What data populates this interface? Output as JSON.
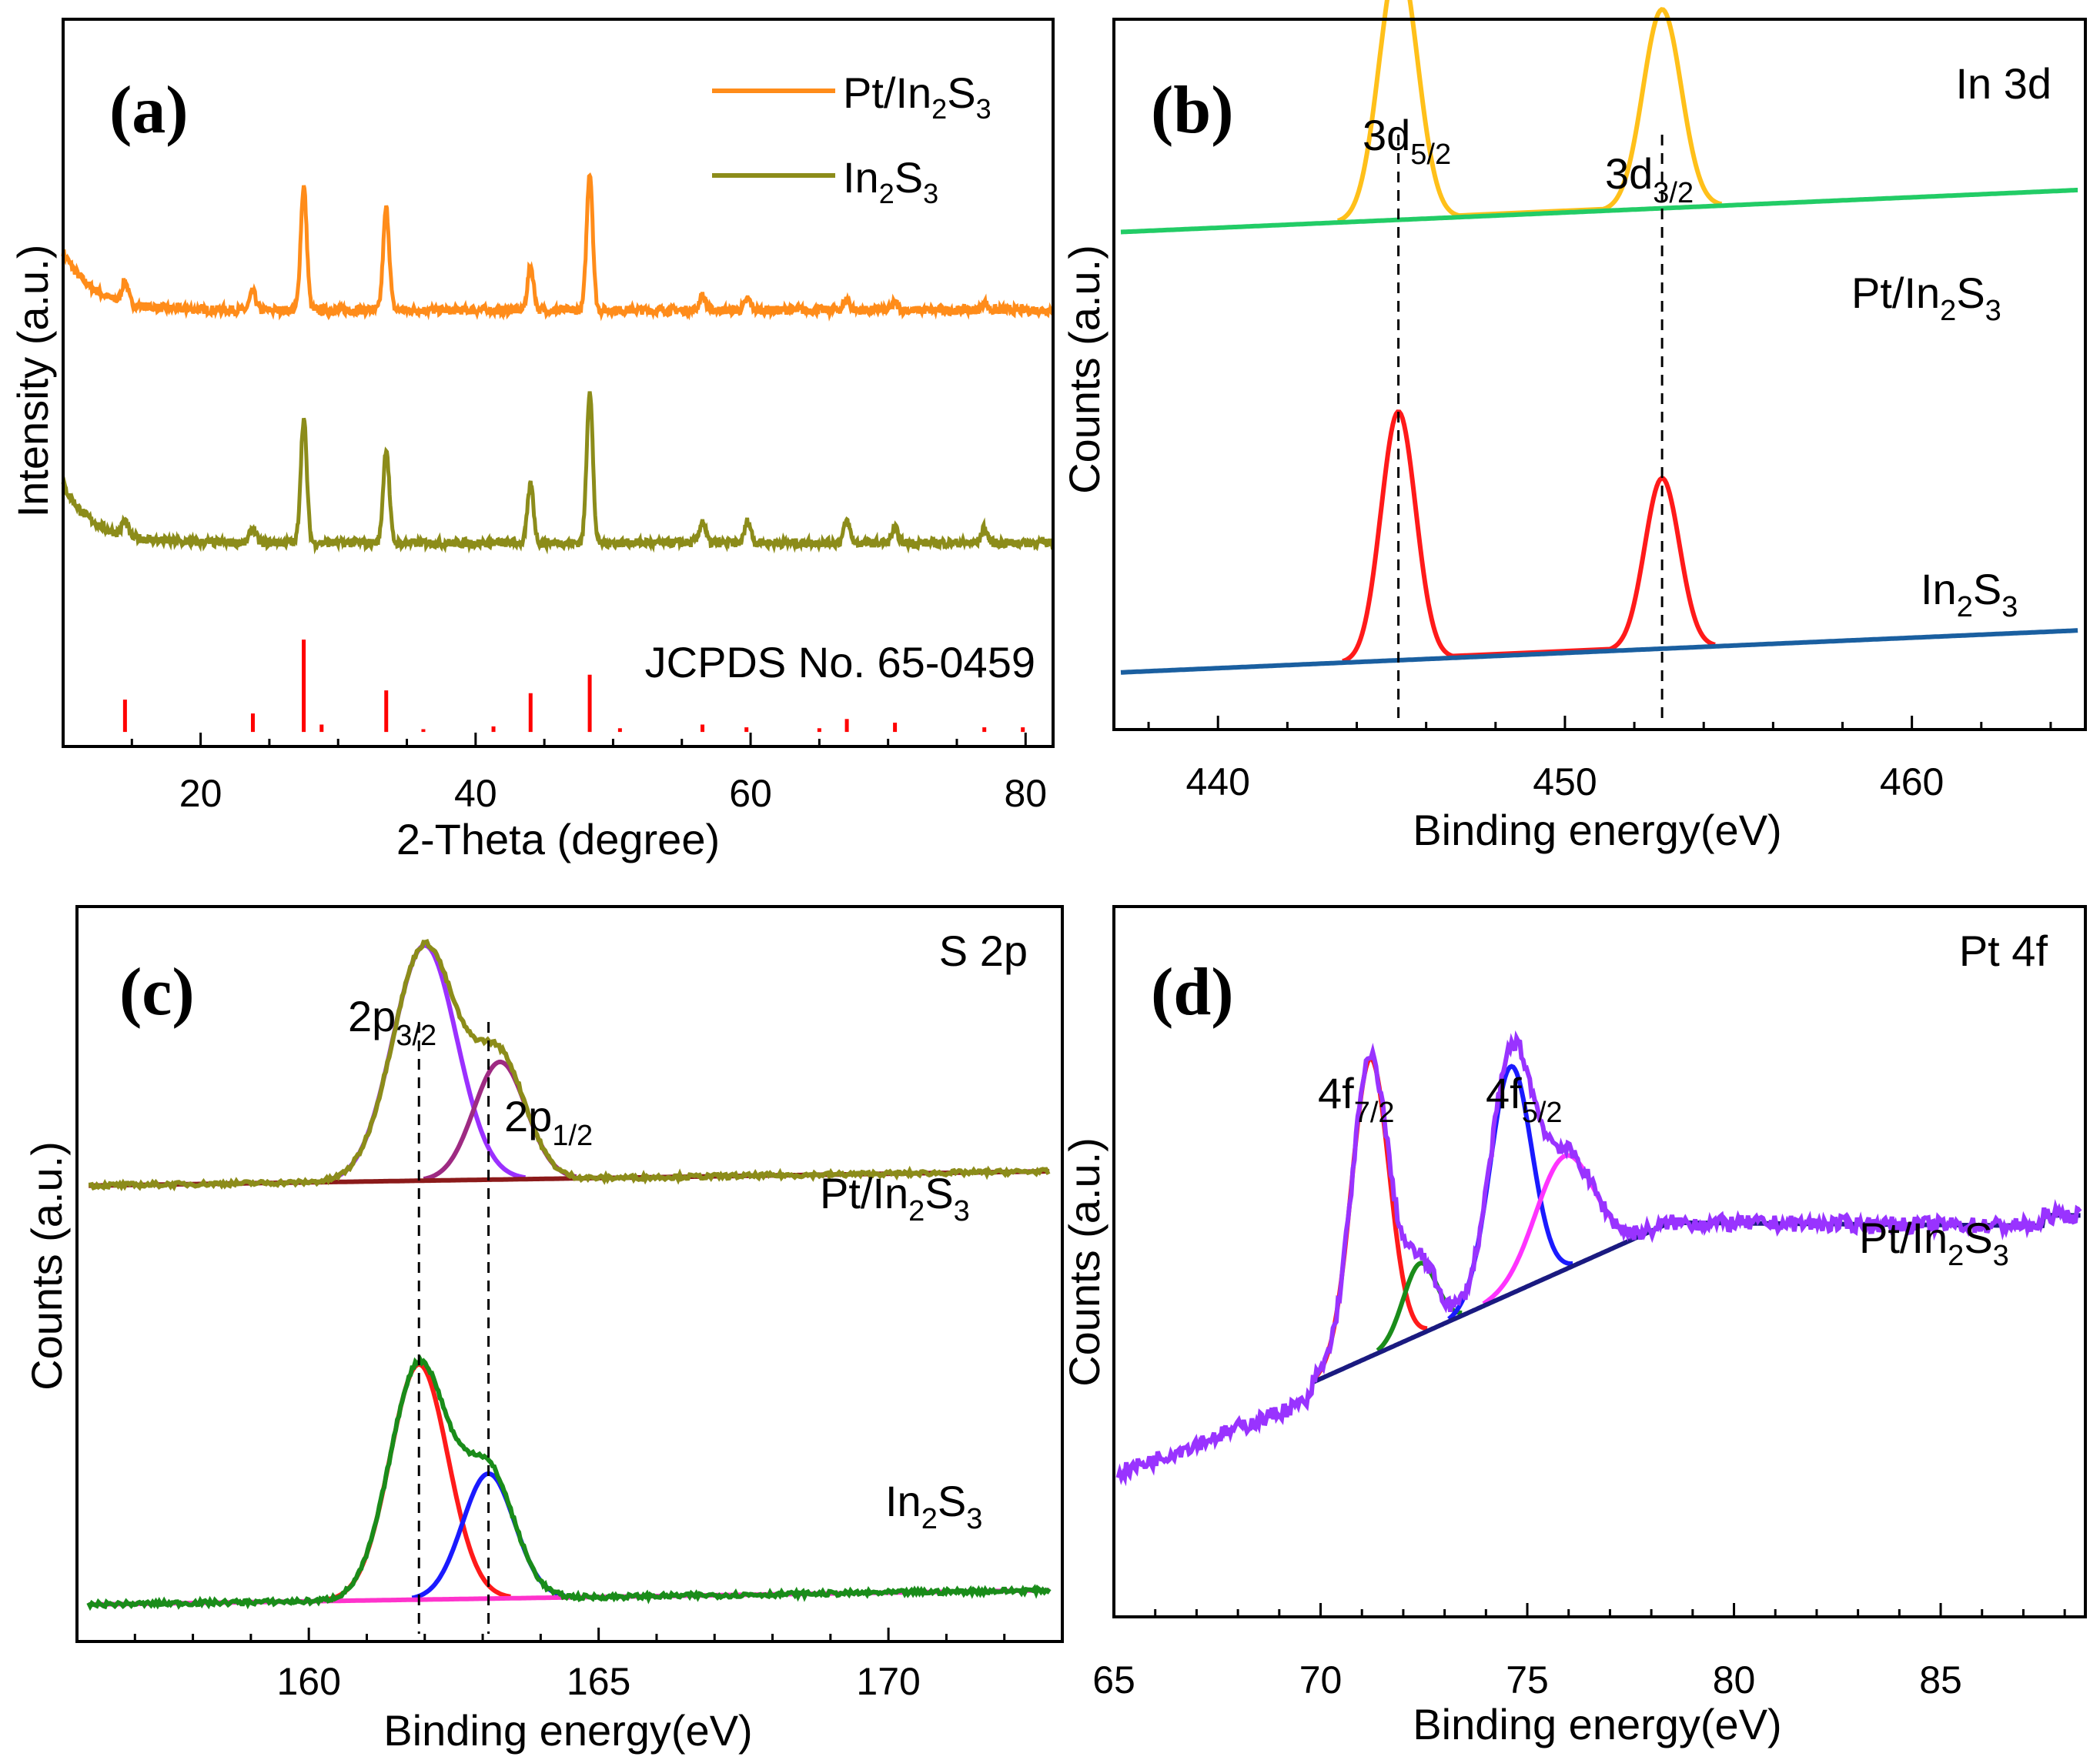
{
  "chart_data": [
    {
      "type": "line",
      "panel": "(a)",
      "xlabel": "2-Theta (degree)",
      "ylabel": "Intensity (a.u.)",
      "xlim": [
        10,
        82
      ],
      "ylim": [
        0,
        100
      ],
      "xticks": [
        20,
        40,
        60,
        80
      ],
      "legend_position": "top-right",
      "legend": [
        {
          "name": "Pt/In2S3",
          "color": "#ff8c1a"
        },
        {
          "name": "In2S3",
          "color": "#8c8c1a"
        }
      ],
      "legend_labels": [
        "Pt/In",
        "2",
        "S",
        "3",
        "In",
        "2",
        "S",
        "3"
      ],
      "reference_label": "JCPDS No. 65-0459",
      "reference_color": "#ff0000",
      "series": [
        {
          "name": "Pt/In2S3",
          "color": "#ff8c1a",
          "baseline": 60,
          "start_rise": 10,
          "peaks": [
            [
              14.5,
              3
            ],
            [
              23.8,
              2.5
            ],
            [
              27.5,
              17
            ],
            [
              33.5,
              14
            ],
            [
              44,
              6
            ],
            [
              48.3,
              19
            ],
            [
              56.5,
              2
            ],
            [
              59.8,
              1.5
            ],
            [
              67,
              1.5
            ],
            [
              70.5,
              1
            ],
            [
              77,
              1
            ]
          ]
        },
        {
          "name": "In2S3",
          "color": "#8c8c1a",
          "baseline": 28,
          "start_rise": 10,
          "peaks": [
            [
              14.5,
              2
            ],
            [
              23.8,
              2
            ],
            [
              27.5,
              17
            ],
            [
              33.5,
              13
            ],
            [
              44,
              8
            ],
            [
              48.3,
              21
            ],
            [
              56.5,
              3
            ],
            [
              59.8,
              3
            ],
            [
              67,
              3
            ],
            [
              70.5,
              2
            ],
            [
              77,
              2
            ]
          ]
        }
      ],
      "reference_sticks": [
        [
          14.5,
          35
        ],
        [
          23.8,
          20
        ],
        [
          27.5,
          100
        ],
        [
          28.8,
          8
        ],
        [
          33.5,
          45
        ],
        [
          36.2,
          3
        ],
        [
          41.3,
          6
        ],
        [
          44,
          42
        ],
        [
          48.3,
          62
        ],
        [
          50.5,
          4
        ],
        [
          56.5,
          8
        ],
        [
          59.7,
          5
        ],
        [
          65,
          4
        ],
        [
          67,
          14
        ],
        [
          70.5,
          10
        ],
        [
          77,
          5
        ],
        [
          79.8,
          5
        ]
      ]
    },
    {
      "type": "line",
      "panel": "(b)",
      "title": "In 3d",
      "xlabel": "Binding energy(eV)",
      "ylabel": "Counts (a.u.)",
      "xlim": [
        437,
        465
      ],
      "ylim": [
        0,
        100
      ],
      "xticks": [
        440,
        450,
        460
      ],
      "peak_labels": [
        {
          "main": "3d",
          "sub": "5/2",
          "x": 445.2
        },
        {
          "main": "3d",
          "sub": "3/2",
          "x": 452.8
        }
      ],
      "series_labels": [
        {
          "main": "Pt/In",
          "sub1": "2",
          "mid": "S",
          "sub2": "3"
        },
        {
          "main": "In",
          "sub1": "2",
          "mid": "S",
          "sub2": "3"
        }
      ],
      "series": [
        {
          "name": "Pt/In2S3 fit",
          "color": "#ffc01a",
          "peaks": [
            [
              445.2,
              37,
              0.55
            ],
            [
              452.8,
              28,
              0.55
            ]
          ],
          "baseline": [
            70,
            76
          ]
        },
        {
          "name": "Pt/In2S3 background",
          "color": "#22cc66",
          "baseline": [
            70,
            76
          ]
        },
        {
          "name": "In2S3 fit",
          "color": "#ff1a1a",
          "peaks": [
            [
              445.2,
              35,
              0.5
            ],
            [
              452.8,
              24,
              0.5
            ]
          ],
          "baseline": [
            8,
            14
          ]
        },
        {
          "name": "In2S3 background",
          "color": "#1a5fa0",
          "baseline": [
            8,
            14
          ]
        }
      ],
      "dashed_lines": [
        445.2,
        452.8
      ]
    },
    {
      "type": "line",
      "panel": "(c)",
      "title": "S 2p",
      "xlabel": "Binding energy(eV)",
      "ylabel": "Counts (a.u.)",
      "xlim": [
        156,
        173
      ],
      "ylim": [
        0,
        100
      ],
      "xticks": [
        160,
        165,
        170
      ],
      "peak_labels": [
        {
          "main": "2p",
          "sub": "3/2",
          "x": 161.9
        },
        {
          "main": "2p",
          "sub": "1/2",
          "x": 163.1
        }
      ],
      "series_labels": [
        {
          "main": "Pt/In",
          "sub1": "2",
          "mid": "S",
          "sub2": "3"
        },
        {
          "main": "In",
          "sub1": "2",
          "mid": "S",
          "sub2": "3"
        }
      ],
      "series": [
        {
          "name": "Pt/In2S3 component 1",
          "color": "#9b30ff",
          "peaks": [
            [
              162.0,
              32,
              0.55
            ]
          ],
          "baseline": [
            62,
            64
          ]
        },
        {
          "name": "Pt/In2S3 component 2",
          "color": "#9e2a82",
          "peaks": [
            [
              163.3,
              16,
              0.45
            ]
          ],
          "baseline": [
            62,
            64
          ]
        },
        {
          "name": "Pt/In2S3 background",
          "color": "#8b1a1a",
          "baseline": [
            62,
            64
          ]
        },
        {
          "name": "Pt/In2S3 envelope",
          "color": "#8c8c1a",
          "peaks": [
            [
              162.0,
              32,
              0.55
            ],
            [
              163.3,
              16,
              0.45
            ]
          ],
          "baseline": [
            62,
            64
          ]
        },
        {
          "name": "In2S3 component 1",
          "color": "#ff1a1a",
          "peaks": [
            [
              161.9,
              32,
              0.5
            ]
          ],
          "baseline": [
            5,
            7
          ]
        },
        {
          "name": "In2S3 component 2",
          "color": "#1a1aff",
          "peaks": [
            [
              163.1,
              17,
              0.45
            ]
          ],
          "baseline": [
            5,
            7
          ]
        },
        {
          "name": "In2S3 background",
          "color": "#ff33cc",
          "baseline": [
            5,
            7
          ]
        },
        {
          "name": "In2S3 envelope",
          "color": "#1a8c1a",
          "peaks": [
            [
              161.9,
              32,
              0.5
            ],
            [
              163.1,
              17,
              0.45
            ]
          ],
          "baseline": [
            5,
            7
          ]
        }
      ],
      "dashed_lines": [
        161.9,
        163.1
      ]
    },
    {
      "type": "line",
      "panel": "(d)",
      "title": "Pt 4f",
      "xlabel": "Binding energy(eV)",
      "ylabel": "Counts (a.u.)",
      "xlim": [
        65,
        88.5
      ],
      "ylim": [
        0,
        100
      ],
      "xticks": [
        65,
        70,
        75,
        80,
        85
      ],
      "peak_labels": [
        {
          "main": "4f",
          "sub": "7/2",
          "x": 71.2
        },
        {
          "main": "4f",
          "sub": "5/2",
          "x": 74.6
        }
      ],
      "series_labels": [
        {
          "main": "Pt/In",
          "sub1": "2",
          "mid": "S",
          "sub2": "3"
        }
      ],
      "series": [
        {
          "name": "component Pt0 4f7/2",
          "color": "#ff1a1a",
          "peaks": [
            [
              71.2,
              42,
              0.45
            ]
          ]
        },
        {
          "name": "component Pt2+ 4f7/2",
          "color": "#1a8c1a",
          "peaks": [
            [
              72.4,
              10,
              0.4
            ]
          ]
        },
        {
          "name": "component Pt0 4f5/2",
          "color": "#1a1aff",
          "peaks": [
            [
              74.6,
              32,
              0.5
            ]
          ]
        },
        {
          "name": "component Pt2+ 4f5/2",
          "color": "#ff33ff",
          "peaks": [
            [
              75.9,
              16,
              0.7
            ]
          ]
        },
        {
          "name": "background",
          "color": "#1a1a80"
        },
        {
          "name": "envelope",
          "color": "#9933ff"
        }
      ]
    }
  ]
}
